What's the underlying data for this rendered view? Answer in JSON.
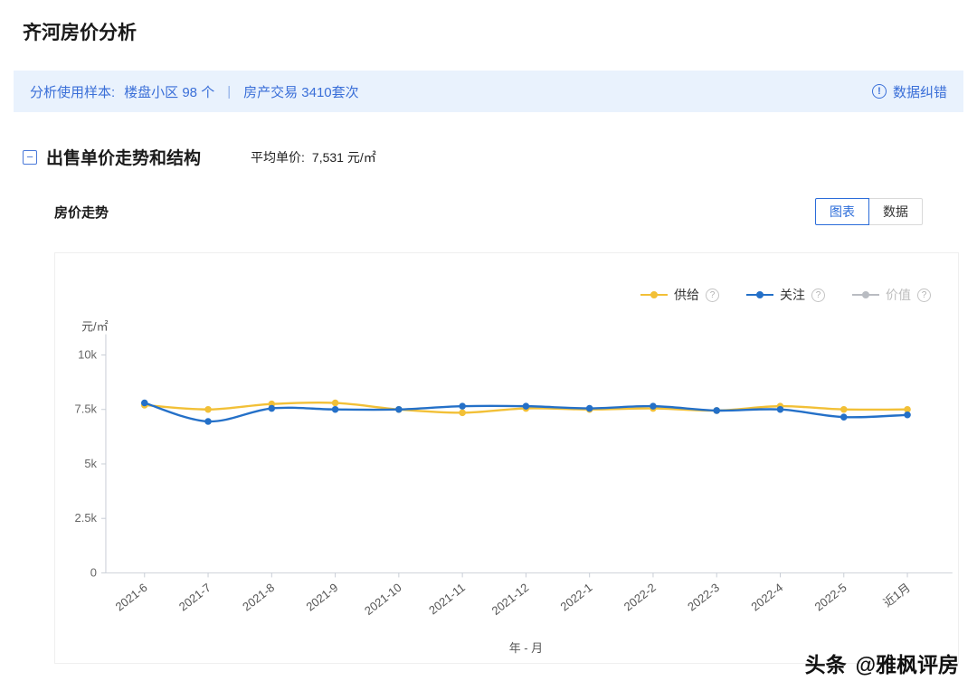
{
  "page": {
    "title": "齐河房价分析"
  },
  "icons": {
    "info": "!",
    "collapse": "−",
    "help": "?"
  },
  "info_bar": {
    "label": "分析使用样本:",
    "sample_buildings": "楼盘小区 98 个",
    "separator": "|",
    "sample_transactions": "房产交易 3410套次",
    "correction_label": "数据纠错"
  },
  "section": {
    "title": "出售单价走势和结构",
    "avg_label": "平均单价:",
    "avg_value": "7,531 元/㎡"
  },
  "trend": {
    "title": "房价走势",
    "tabs": [
      {
        "label": "图表",
        "active": true
      },
      {
        "label": "数据",
        "active": false
      }
    ]
  },
  "chart_data": {
    "type": "line",
    "title": "房价走势",
    "categories": [
      "2021-6",
      "2021-7",
      "2021-8",
      "2021-9",
      "2021-10",
      "2021-11",
      "2021-12",
      "2022-1",
      "2022-2",
      "2022-3",
      "2022-4",
      "2022-5",
      "近1月"
    ],
    "series": [
      {
        "name": "供给",
        "color": "#f2c037",
        "disabled": false,
        "values": [
          7700,
          7500,
          7750,
          7800,
          7500,
          7350,
          7550,
          7500,
          7550,
          7450,
          7650,
          7500,
          7500
        ]
      },
      {
        "name": "关注",
        "color": "#2470c8",
        "disabled": false,
        "values": [
          7800,
          6950,
          7550,
          7500,
          7500,
          7650,
          7650,
          7550,
          7650,
          7450,
          7500,
          7150,
          7250
        ]
      },
      {
        "name": "价值",
        "color": "#b9bcc2",
        "disabled": true,
        "values": null
      }
    ],
    "ylabel": "元/㎡",
    "xlabel": "年 - 月",
    "yticks": [
      0,
      2500,
      5000,
      7500,
      10000
    ],
    "ytick_labels": [
      "0",
      "2.5k",
      "5k",
      "7.5k",
      "10k"
    ],
    "ylim": [
      0,
      10000
    ],
    "grid": false,
    "legend_position": "top-right"
  },
  "watermark": {
    "brand": "头条",
    "handle": "@雅枫评房"
  }
}
